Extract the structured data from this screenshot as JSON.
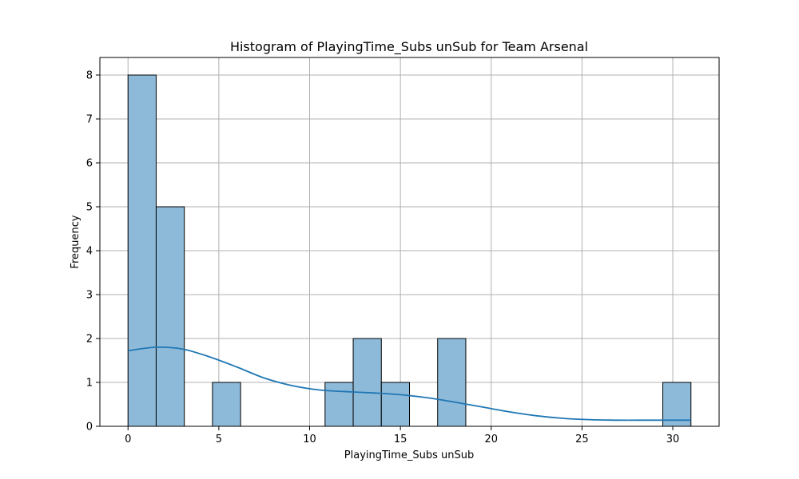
{
  "chart_data": {
    "type": "bar",
    "title": "Histogram of PlayingTime_Subs unSub for Team Arsenal",
    "xlabel": "PlayingTime_Subs unSub",
    "ylabel": "Frequency",
    "xlim": [
      -1.55,
      32.55
    ],
    "ylim": [
      0,
      8.4
    ],
    "grid": true,
    "x_ticks": [
      0,
      5,
      10,
      15,
      20,
      25,
      30
    ],
    "y_ticks": [
      0,
      1,
      2,
      3,
      4,
      5,
      6,
      7,
      8
    ],
    "bin_edges": [
      0,
      1.55,
      3.1,
      4.65,
      6.2,
      7.75,
      9.3,
      10.85,
      12.4,
      13.95,
      15.5,
      17.05,
      18.6,
      20.15,
      21.7,
      23.25,
      24.8,
      26.35,
      27.9,
      29.45,
      31.0
    ],
    "counts": [
      8,
      5,
      0,
      1,
      0,
      0,
      0,
      1,
      2,
      1,
      0,
      2,
      0,
      0,
      0,
      0,
      0,
      0,
      0,
      1
    ],
    "bar_color": "#8ebad9",
    "bar_edge_color": "#000000",
    "kde": {
      "color": "#1f77b4",
      "x": [
        0,
        1.5,
        3,
        4.5,
        6,
        7.5,
        9,
        10.5,
        12,
        13.5,
        15,
        16.5,
        18,
        19.5,
        21,
        22.5,
        24,
        25.5,
        27,
        28.5,
        30,
        31
      ],
      "y": [
        1.72,
        1.8,
        1.76,
        1.58,
        1.35,
        1.1,
        0.93,
        0.83,
        0.79,
        0.76,
        0.72,
        0.65,
        0.55,
        0.44,
        0.33,
        0.24,
        0.18,
        0.15,
        0.14,
        0.14,
        0.14,
        0.14
      ]
    }
  }
}
